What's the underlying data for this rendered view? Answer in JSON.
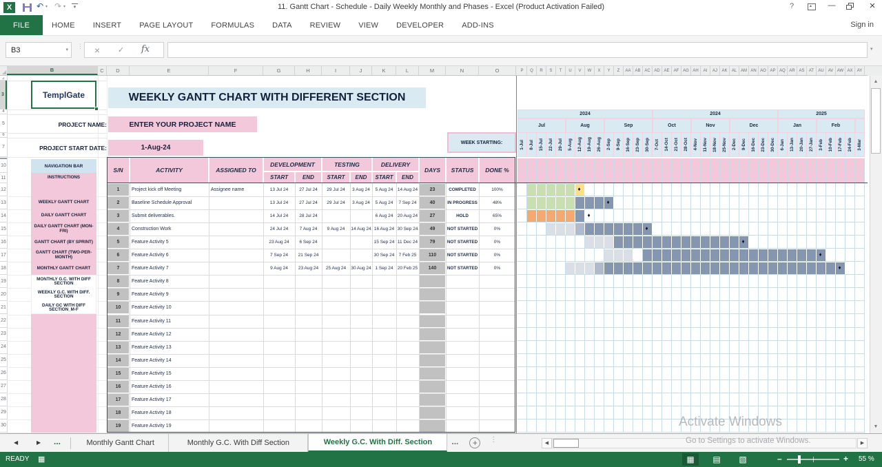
{
  "titlebar": {
    "title": "11. Gantt Chart - Schedule - Daily Weekly Monthly and Phases - Excel (Product Activation Failed)"
  },
  "ribbon": {
    "tabs": [
      "FILE",
      "HOME",
      "INSERT",
      "PAGE LAYOUT",
      "FORMULAS",
      "DATA",
      "REVIEW",
      "VIEW",
      "DEVELOPER",
      "ADD-INS"
    ],
    "active_tab": "FILE",
    "sign_in": "Sign in"
  },
  "formula_bar": {
    "name_box": "B3",
    "fx_label": "fx"
  },
  "columns_left": [
    "B",
    "C",
    "D",
    "E",
    "F",
    "G",
    "H",
    "I",
    "J",
    "K",
    "L",
    "M",
    "N",
    "O"
  ],
  "selected_column": "B",
  "selected_row": 3,
  "row_numbers": [
    2,
    3,
    4,
    5,
    6,
    7,
    10,
    11,
    12,
    13,
    14,
    15,
    16,
    17,
    18,
    19,
    20,
    21,
    22,
    23,
    24,
    25,
    26,
    27,
    28,
    29,
    30
  ],
  "sheet": {
    "logo": "TemplGate",
    "main_title": "WEEKLY GANTT CHART WITH DIFFERENT SECTION",
    "project_name_label": "PROJECT NAME:",
    "project_name_value": "ENTER YOUR PROJECT NAME",
    "start_date_label": "PROJECT START DATE:",
    "start_date_value": "1-Aug-24",
    "week_starting_label": "WEEK STARTING:",
    "nav": {
      "title": "NAVIGATION BAR",
      "items": [
        {
          "label": "INSTRUCTIONS",
          "row": 11
        },
        {
          "label": "WEEKLY GANTT CHART",
          "row": 13
        },
        {
          "label": "DAILY GANTT CHART",
          "row": 14
        },
        {
          "label": "DAILY GANTT CHART (MON-FRI)",
          "row": 15
        },
        {
          "label": "GANTT CHART (BY SPRINT)",
          "row": 16
        },
        {
          "label": "GANTT CHART (TWO-PER-MONTH)",
          "row": 17
        },
        {
          "label": "MONTHLY GANTT CHART",
          "row": 18
        },
        {
          "label": "MONTHLY G.C. WITH DIFF SECTION",
          "row": 19
        },
        {
          "label": "WEEKLY G.C. WITH DIFF. SECTION",
          "row": 20
        },
        {
          "label": "DAILY GC WITH DIFF SECTION_M-F",
          "row": 21
        }
      ]
    }
  },
  "table": {
    "col_headers": {
      "sn": "S/N",
      "activity": "ACTIVITY",
      "assigned": "ASSIGNED TO",
      "days": "DAYS",
      "status": "STATUS",
      "done": "DONE %"
    },
    "group_headers": [
      "DEVELOPMENT",
      "TESTING",
      "DELIVERY"
    ],
    "sub_headers": [
      "START",
      "END",
      "START",
      "END",
      "START",
      "END"
    ],
    "rows": [
      {
        "sn": "1",
        "activity": "Project kick off Meeting",
        "assigned": "Assignee name",
        "ds": "13 Jul 24",
        "de": "27 Jul 24",
        "ts": "29 Jul 24",
        "te": "3 Aug 24",
        "vs": "5 Aug 24",
        "ve": "14 Aug 24",
        "days": "23",
        "status": "COMPLETED",
        "done": "100%"
      },
      {
        "sn": "2",
        "activity": "Baseline Schedule Approval",
        "assigned": "",
        "ds": "13 Jul 24",
        "de": "27 Jul 24",
        "ts": "29 Jul 24",
        "te": "3 Aug 24",
        "vs": "5 Aug 24",
        "ve": "7 Sep 24",
        "days": "40",
        "status": "IN PROGRESS",
        "done": "48%"
      },
      {
        "sn": "3",
        "activity": "Submit deliverables.",
        "assigned": "",
        "ds": "14 Jul 24",
        "de": "28 Jul 24",
        "ts": "",
        "te": "",
        "vs": "6 Aug 24",
        "ve": "20 Aug 24",
        "days": "27",
        "status": "HOLD",
        "done": "65%"
      },
      {
        "sn": "4",
        "activity": "Construction Work",
        "assigned": "",
        "ds": "24 Jul 24",
        "de": "7 Aug 24",
        "ts": "9 Aug 24",
        "te": "14 Aug 24",
        "vs": "16 Aug 24",
        "ve": "30 Sep 24",
        "days": "49",
        "status": "NOT STARTED",
        "done": "0%"
      },
      {
        "sn": "5",
        "activity": "Feature Activity  5",
        "assigned": "",
        "ds": "23 Aug 24",
        "de": "6 Sep 24",
        "ts": "",
        "te": "",
        "vs": "15 Sep 24",
        "ve": "11 Dec 24",
        "days": "79",
        "status": "NOT STARTED",
        "done": "0%"
      },
      {
        "sn": "6",
        "activity": "Feature Activity  6",
        "assigned": "",
        "ds": "7 Sep 24",
        "de": "21 Sep 24",
        "ts": "",
        "te": "",
        "vs": "30 Sep 24",
        "ve": "7 Feb 25",
        "days": "110",
        "status": "NOT STARTED",
        "done": "0%"
      },
      {
        "sn": "7",
        "activity": "Feature Activity  7",
        "assigned": "",
        "ds": "9 Aug 24",
        "de": "23 Aug 24",
        "ts": "25 Aug 24",
        "te": "30 Aug 24",
        "vs": "1 Sep 24",
        "ve": "20 Feb 25",
        "days": "140",
        "status": "NOT STARTED",
        "done": "0%"
      },
      {
        "sn": "8",
        "activity": "Feature Activity  8",
        "assigned": "",
        "ds": "",
        "de": "",
        "ts": "",
        "te": "",
        "vs": "",
        "ve": "",
        "days": "",
        "status": "",
        "done": ""
      },
      {
        "sn": "9",
        "activity": "Feature Activity  9",
        "assigned": "",
        "ds": "",
        "de": "",
        "ts": "",
        "te": "",
        "vs": "",
        "ve": "",
        "days": "",
        "status": "",
        "done": ""
      },
      {
        "sn": "10",
        "activity": "Feature Activity  10",
        "assigned": "",
        "ds": "",
        "de": "",
        "ts": "",
        "te": "",
        "vs": "",
        "ve": "",
        "days": "",
        "status": "",
        "done": ""
      },
      {
        "sn": "11",
        "activity": "Feature Activity  11",
        "assigned": "",
        "ds": "",
        "de": "",
        "ts": "",
        "te": "",
        "vs": "",
        "ve": "",
        "days": "",
        "status": "",
        "done": ""
      },
      {
        "sn": "12",
        "activity": "Feature Activity  12",
        "assigned": "",
        "ds": "",
        "de": "",
        "ts": "",
        "te": "",
        "vs": "",
        "ve": "",
        "days": "",
        "status": "",
        "done": ""
      },
      {
        "sn": "13",
        "activity": "Feature Activity  13",
        "assigned": "",
        "ds": "",
        "de": "",
        "ts": "",
        "te": "",
        "vs": "",
        "ve": "",
        "days": "",
        "status": "",
        "done": ""
      },
      {
        "sn": "14",
        "activity": "Feature Activity  14",
        "assigned": "",
        "ds": "",
        "de": "",
        "ts": "",
        "te": "",
        "vs": "",
        "ve": "",
        "days": "",
        "status": "",
        "done": ""
      },
      {
        "sn": "15",
        "activity": "Feature Activity  15",
        "assigned": "",
        "ds": "",
        "de": "",
        "ts": "",
        "te": "",
        "vs": "",
        "ve": "",
        "days": "",
        "status": "",
        "done": ""
      },
      {
        "sn": "16",
        "activity": "Feature Activity  16",
        "assigned": "",
        "ds": "",
        "de": "",
        "ts": "",
        "te": "",
        "vs": "",
        "ve": "",
        "days": "",
        "status": "",
        "done": ""
      },
      {
        "sn": "17",
        "activity": "Feature Activity  17",
        "assigned": "",
        "ds": "",
        "de": "",
        "ts": "",
        "te": "",
        "vs": "",
        "ve": "",
        "days": "",
        "status": "",
        "done": ""
      },
      {
        "sn": "18",
        "activity": "Feature Activity  18",
        "assigned": "",
        "ds": "",
        "de": "",
        "ts": "",
        "te": "",
        "vs": "",
        "ve": "",
        "days": "",
        "status": "",
        "done": ""
      },
      {
        "sn": "19",
        "activity": "Feature Activity  19",
        "assigned": "",
        "ds": "",
        "de": "",
        "ts": "",
        "te": "",
        "vs": "",
        "ve": "",
        "days": "",
        "status": "",
        "done": ""
      }
    ]
  },
  "gantt": {
    "col_letters": [
      "P",
      "Q",
      "R",
      "S",
      "T",
      "U",
      "V",
      "W",
      "X",
      "Y",
      "Z",
      "AA",
      "AB",
      "AC",
      "AD",
      "AE",
      "AF",
      "AG",
      "AH",
      "AI",
      "AJ",
      "AK",
      "AL",
      "AM",
      "AN",
      "AO",
      "AP",
      "AQ",
      "AR",
      "AS",
      "AT",
      "AU",
      "AV",
      "AW",
      "AX",
      "AY"
    ],
    "years": [
      {
        "label": "2024",
        "from": 1,
        "to": 14
      },
      {
        "label": "2024",
        "from": 15,
        "to": 27
      },
      {
        "label": "2025",
        "from": 28,
        "to": 36
      }
    ],
    "months": [
      {
        "label": "Jul",
        "from": 1,
        "to": 5
      },
      {
        "label": "Aug",
        "from": 6,
        "to": 9
      },
      {
        "label": "Sep",
        "from": 10,
        "to": 14
      },
      {
        "label": "Oct",
        "from": 15,
        "to": 18
      },
      {
        "label": "Nov",
        "from": 19,
        "to": 22
      },
      {
        "label": "Dec",
        "from": 23,
        "to": 27
      },
      {
        "label": "Jan",
        "from": 28,
        "to": 31
      },
      {
        "label": "Feb",
        "from": 32,
        "to": 35
      },
      {
        "label": "",
        "from": 36,
        "to": 36
      }
    ],
    "weeks": [
      "1-Jul",
      "8-Jul",
      "15-Jul",
      "22-Jul",
      "29-Jul",
      "5-Aug",
      "12-Aug",
      "19-Aug",
      "26-Aug",
      "2-Sep",
      "9-Sep",
      "16-Sep",
      "23-Sep",
      "30-Sep",
      "7-Oct",
      "14-Oct",
      "21-Oct",
      "28-Oct",
      "4-Nov",
      "11-Nov",
      "18-Nov",
      "25-Nov",
      "2-Dec",
      "9-Dec",
      "16-Dec",
      "23-Dec",
      "30-Dec",
      "6-Jan",
      "13-Jan",
      "20-Jan",
      "27-Jan",
      "3-Feb",
      "10-Feb",
      "17-Feb",
      "24-Feb",
      "3-Mar"
    ],
    "bars": [
      {
        "row": 1,
        "segments": [
          {
            "from": 2,
            "to": 6,
            "color": "green"
          },
          {
            "from": 7,
            "to": 7,
            "color": "yellow"
          }
        ],
        "diamond": 7
      },
      {
        "row": 2,
        "segments": [
          {
            "from": 2,
            "to": 6,
            "color": "green"
          },
          {
            "from": 7,
            "to": 10,
            "color": "dark"
          }
        ],
        "diamond": 10
      },
      {
        "row": 3,
        "segments": [
          {
            "from": 2,
            "to": 6,
            "color": "orange"
          },
          {
            "from": 7,
            "to": 7,
            "color": "dark"
          }
        ],
        "diamond": 8
      },
      {
        "row": 4,
        "segments": [
          {
            "from": 4,
            "to": 6,
            "color": "light"
          },
          {
            "from": 7,
            "to": 7,
            "color": "medium"
          },
          {
            "from": 8,
            "to": 14,
            "color": "dark"
          }
        ],
        "diamond": 14
      },
      {
        "row": 5,
        "segments": [
          {
            "from": 8,
            "to": 10,
            "color": "light"
          },
          {
            "from": 11,
            "to": 24,
            "color": "dark"
          }
        ],
        "diamond": 24
      },
      {
        "row": 6,
        "segments": [
          {
            "from": 10,
            "to": 12,
            "color": "light"
          },
          {
            "from": 14,
            "to": 32,
            "color": "dark"
          }
        ],
        "diamond": 32
      },
      {
        "row": 7,
        "segments": [
          {
            "from": 6,
            "to": 8,
            "color": "light"
          },
          {
            "from": 9,
            "to": 9,
            "color": "medium"
          },
          {
            "from": 10,
            "to": 34,
            "color": "dark"
          }
        ],
        "diamond": 34
      }
    ]
  },
  "colors": {
    "excel_green": "#217346",
    "pink": "#f3c8da",
    "light_blue": "#d9eaf2",
    "nav_blue": "#cfe4ee",
    "grid_blue": "#c9dde9",
    "green": "#c9dfb2",
    "orange": "#f4a970",
    "yellow": "#fee187",
    "dark": "#8496b0",
    "medium": "#afbacd",
    "light": "#d9dee7",
    "gray_cell": "#c1c1c1"
  },
  "sheet_tabs": {
    "tabs": [
      "Monthly Gantt Chart",
      "Monthly G.C. With Diff Section",
      "Weekly G.C. With Diff. Section"
    ],
    "active": "Weekly G.C. With Diff. Section",
    "overflow_left": "...",
    "overflow_right": "..."
  },
  "status_bar": {
    "mode": "READY",
    "zoom": "55 %"
  },
  "watermark": {
    "line1": "Activate Windows",
    "line2": "Go to Settings to activate Windows."
  },
  "icons": {
    "excel_logo": "X",
    "undo": "↶",
    "redo": "↷",
    "dropdown": "▾",
    "help": "?",
    "close": "×",
    "minimize": "–",
    "cancel": "×",
    "enter": "✓",
    "tab_prev": "◀",
    "tab_next": "▶",
    "add_sheet": "+",
    "tab_menu": "⋮",
    "scroll_left": "◀",
    "scroll_right": "▶",
    "scroll_up": "▲",
    "scroll_down": "▼",
    "diamond": "♦",
    "view_normal": "▦",
    "view_layout": "▤",
    "view_break": "▧",
    "macro": "▦",
    "zoom_out": "–",
    "zoom_in": "+",
    "select_all_corner": ""
  }
}
